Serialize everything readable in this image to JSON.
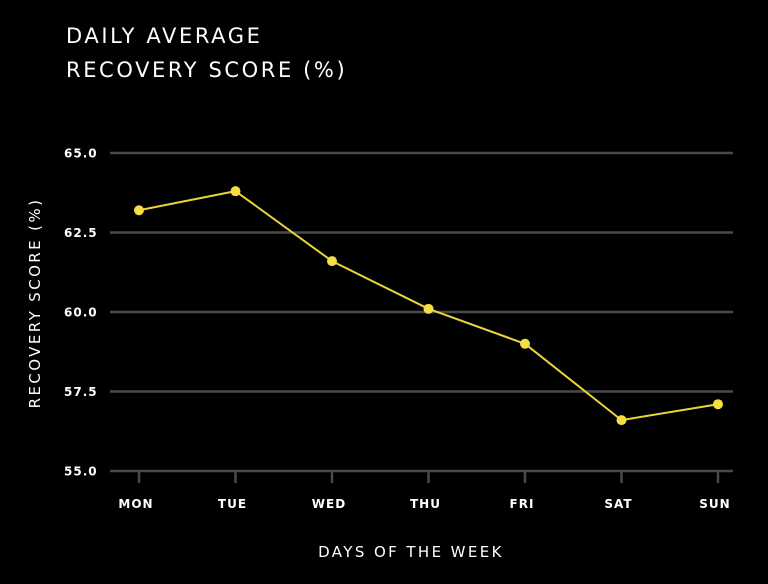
{
  "chart_data": {
    "type": "line",
    "title_lines": [
      "DAILY AVERAGE",
      "RECOVERY SCORE (%)"
    ],
    "xlabel": "DAYS OF THE WEEK",
    "ylabel": "RECOVERY SCORE (%)",
    "categories": [
      "MON",
      "TUE",
      "WED",
      "THU",
      "FRI",
      "SAT",
      "SUN"
    ],
    "values": [
      63.2,
      63.8,
      61.6,
      60.1,
      59.0,
      56.6,
      57.1
    ],
    "ylim": [
      55.0,
      65.0
    ],
    "yticks": [
      "65.0",
      "62.5",
      "60.0",
      "57.5",
      "55.0"
    ],
    "ytick_values": [
      65.0,
      62.5,
      60.0,
      57.5,
      55.0
    ],
    "grid": true,
    "legend": "none"
  },
  "colors": {
    "background": "#000000",
    "line": "#e8d53c",
    "marker": "#f5dd45",
    "grid": "#4a4a4a",
    "text": "#ffffff"
  }
}
